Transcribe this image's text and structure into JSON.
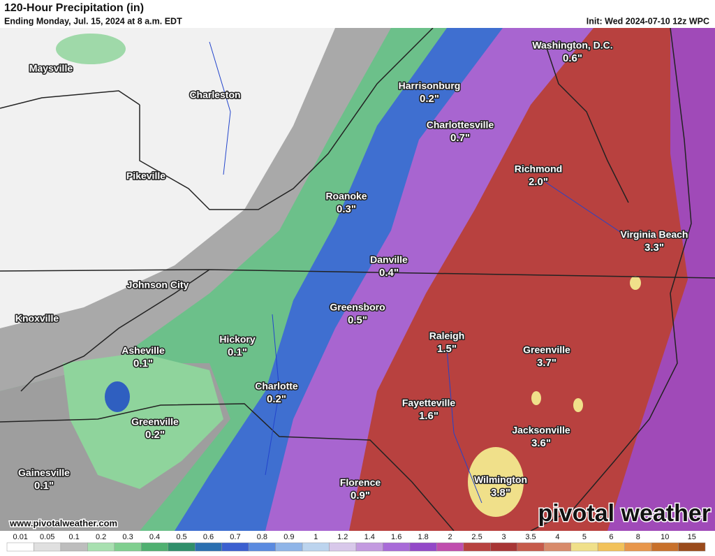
{
  "header": {
    "title": "120-Hour Precipitation (in)",
    "subtitle": "Ending Monday, Jul. 15, 2024 at 8 a.m. EDT",
    "init": "Init: Wed 2024-07-10 12z WPC"
  },
  "cities": [
    {
      "name": "Maysville"
    },
    {
      "name": "Charleston"
    },
    {
      "name": "Pikeville"
    },
    {
      "name": "Johnson City"
    },
    {
      "name": "Knoxville"
    },
    {
      "name": "Washington, D.C.",
      "amount": "0.6\""
    },
    {
      "name": "Harrisonburg",
      "amount": "0.2\""
    },
    {
      "name": "Charlottesville",
      "amount": "0.7\""
    },
    {
      "name": "Richmond",
      "amount": "2.0\""
    },
    {
      "name": "Roanoke",
      "amount": "0.3\""
    },
    {
      "name": "Virginia Beach",
      "amount": "3.3\""
    },
    {
      "name": "Danville",
      "amount": "0.4\""
    },
    {
      "name": "Greensboro",
      "amount": "0.5\""
    },
    {
      "name": "Raleigh",
      "amount": "1.5\""
    },
    {
      "name": "Greenville",
      "amount": "3.7\""
    },
    {
      "name": "Hickory",
      "amount": "0.1\""
    },
    {
      "name": "Asheville",
      "amount": "0.1\""
    },
    {
      "name": "Charlotte",
      "amount": "0.2\""
    },
    {
      "name": "Fayetteville",
      "amount": "1.6\""
    },
    {
      "name": "Greenville",
      "amount": "0.2\""
    },
    {
      "name": "Jacksonville",
      "amount": "3.6\""
    },
    {
      "name": "Gainesville",
      "amount": "0.1\""
    },
    {
      "name": "Florence",
      "amount": "0.9\""
    },
    {
      "name": "Wilmington",
      "amount": "3.8\""
    }
  ],
  "colorbar": {
    "labels": [
      0.01,
      0.05,
      0.1,
      0.2,
      0.3,
      0.4,
      0.5,
      0.6,
      0.7,
      0.8,
      0.9,
      1,
      1.2,
      1.4,
      1.6,
      1.8,
      2,
      2.5,
      3,
      3.5,
      4,
      5,
      6,
      8,
      10,
      15
    ],
    "colors": [
      "#ffffff",
      "#e0e0e0",
      "#bdbdbd",
      "#a8e0b0",
      "#7fcf8f",
      "#4fb070",
      "#2f8f6a",
      "#2a6fb0",
      "#3b5fd0",
      "#5a8ae0",
      "#8fb5e8",
      "#bcd4ee",
      "#d8c8ea",
      "#c39ae0",
      "#a86ad8",
      "#9348c8",
      "#c04dae",
      "#b8413f",
      "#a83535",
      "#c65a4a",
      "#d88a6a",
      "#f0e08a",
      "#f2c25a",
      "#e8964a",
      "#c8702a",
      "#9a4a1a"
    ]
  },
  "footer": {
    "website": "www.pivotalweather.com",
    "brand": "pivotal weather"
  }
}
